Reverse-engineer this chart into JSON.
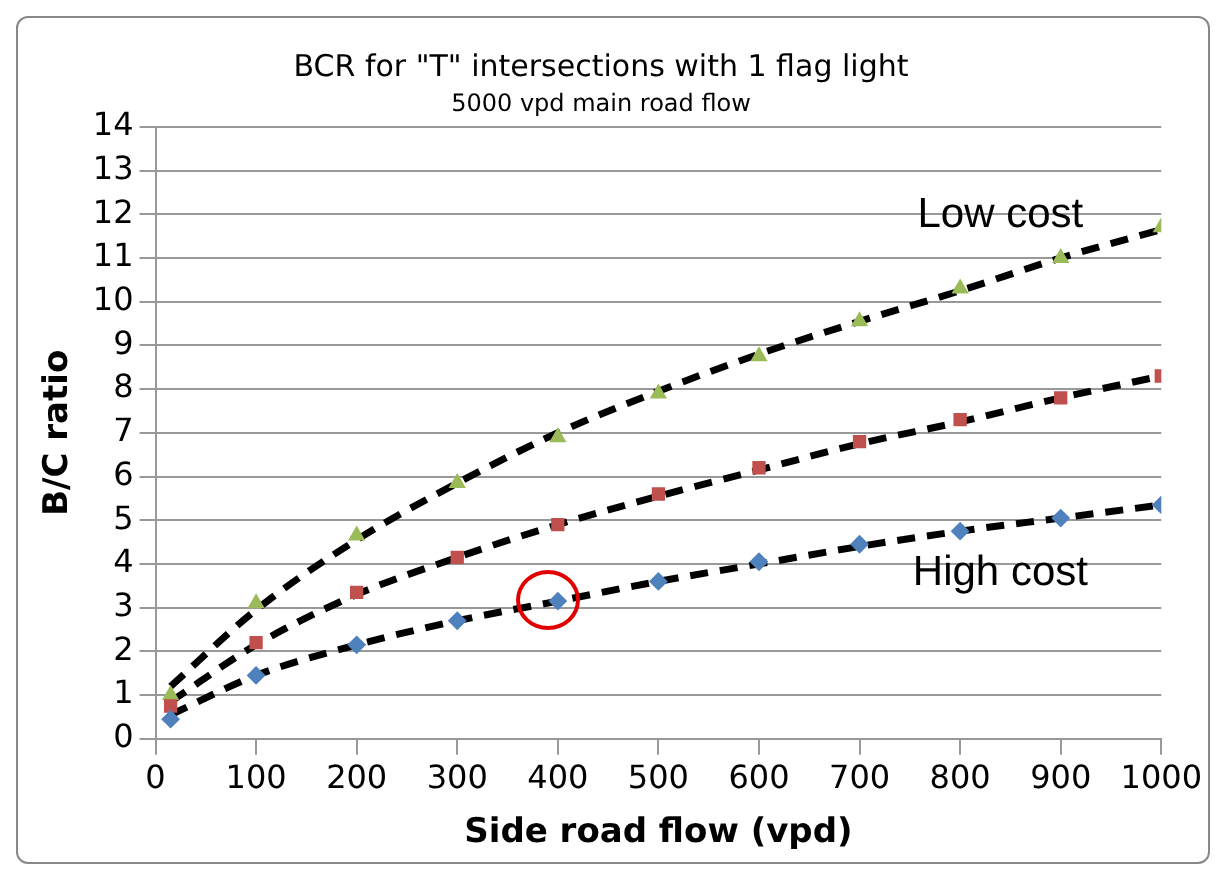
{
  "chart_data": {
    "type": "scatter",
    "title": "BCR for \"T\" intersections with 1 flag light",
    "subtitle": "5000 vpd main road flow",
    "xlabel": "Side road flow (vpd)",
    "ylabel": "B/C ratio",
    "x": [
      15,
      100,
      200,
      300,
      400,
      500,
      600,
      700,
      800,
      900,
      1000
    ],
    "series": [
      {
        "color": "#4f81bd",
        "marker": "diamond",
        "values": [
          0.45,
          1.45,
          2.15,
          2.7,
          3.15,
          3.6,
          4.05,
          4.45,
          4.75,
          5.05,
          5.35
        ]
      },
      {
        "color": "#c0504d",
        "marker": "square",
        "values": [
          0.75,
          2.2,
          3.35,
          4.15,
          4.9,
          5.6,
          6.2,
          6.8,
          7.3,
          7.8,
          8.3
        ]
      },
      {
        "color": "#9bbb59",
        "marker": "triangle",
        "values": [
          1.0,
          3.1,
          4.65,
          5.85,
          6.9,
          7.9,
          8.75,
          9.55,
          10.3,
          11.0,
          11.7
        ]
      },
      {
        "type": "line",
        "color": "#000000",
        "line_style": "dashed",
        "marker": "none",
        "x": [
          15,
          100,
          200,
          300,
          400,
          500,
          600,
          700,
          800,
          900,
          1000
        ],
        "values": [
          0.55,
          1.45,
          2.15,
          2.7,
          3.15,
          3.6,
          4.0,
          4.4,
          4.75,
          5.05,
          5.35
        ]
      },
      {
        "type": "line",
        "color": "#000000",
        "line_style": "dashed",
        "marker": "none",
        "x": [
          15,
          100,
          200,
          300,
          400,
          500,
          600,
          700,
          800,
          900,
          1000
        ],
        "values": [
          0.85,
          2.15,
          3.3,
          4.15,
          4.9,
          5.55,
          6.15,
          6.75,
          7.25,
          7.8,
          8.3
        ]
      },
      {
        "type": "line",
        "color": "#000000",
        "line_style": "dashed",
        "marker": "none",
        "x": [
          15,
          100,
          200,
          300,
          400,
          500,
          600,
          700,
          800,
          900,
          1000
        ],
        "values": [
          1.2,
          2.95,
          4.55,
          5.85,
          7.0,
          7.95,
          8.8,
          9.55,
          10.25,
          11.0,
          11.65
        ]
      }
    ],
    "annotations": [
      "Low cost",
      "High cost"
    ],
    "xlim": [
      0,
      1000
    ],
    "xticks": [
      0,
      100,
      200,
      300,
      400,
      500,
      600,
      700,
      800,
      900,
      1000
    ],
    "ylim": [
      0,
      14
    ],
    "yticks": [
      0,
      1,
      2,
      3,
      4,
      5,
      6,
      7,
      8,
      9,
      10,
      11,
      12,
      13,
      14
    ],
    "grid": "y",
    "legend": false
  }
}
